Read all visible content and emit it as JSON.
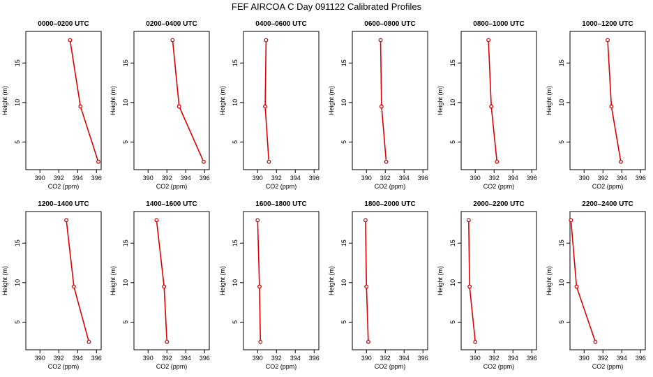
{
  "figure_title": "FEF AIRCOA C  Day 091122  Calibrated Profiles",
  "colors": {
    "series": "#dd0000",
    "axis": "#000000"
  },
  "chart_data": [
    {
      "type": "line",
      "title": "0000–0200 UTC",
      "xlabel": "CO2 (ppm)",
      "ylabel": "Height (m)",
      "xlim": [
        388.5,
        396.5
      ],
      "ylim": [
        1.5,
        19
      ],
      "xticks": [
        "390",
        "392",
        "394",
        "396"
      ],
      "yticks": [
        "5",
        "10",
        "15"
      ],
      "series": [
        {
          "name": "profile",
          "x": [
            393.2,
            394.3,
            396.2
          ],
          "y": [
            17.9,
            9.5,
            2.5
          ]
        }
      ]
    },
    {
      "type": "line",
      "title": "0200–0400 UTC",
      "xlabel": "CO2 (ppm)",
      "ylabel": "Height (m)",
      "xlim": [
        388.5,
        396.5
      ],
      "ylim": [
        1.5,
        19
      ],
      "xticks": [
        "390",
        "392",
        "394",
        "396"
      ],
      "yticks": [
        "5",
        "10",
        "15"
      ],
      "series": [
        {
          "name": "profile",
          "x": [
            392.6,
            393.3,
            395.9
          ],
          "y": [
            17.9,
            9.5,
            2.5
          ]
        }
      ]
    },
    {
      "type": "line",
      "title": "0400–0600 UTC",
      "xlabel": "CO2 (ppm)",
      "ylabel": "Height (m)",
      "xlim": [
        388.5,
        396.5
      ],
      "ylim": [
        1.5,
        19
      ],
      "xticks": [
        "390",
        "392",
        "394",
        "396"
      ],
      "yticks": [
        "5",
        "10",
        "15"
      ],
      "series": [
        {
          "name": "profile",
          "x": [
            390.9,
            390.8,
            391.2
          ],
          "y": [
            17.9,
            9.5,
            2.5
          ]
        }
      ]
    },
    {
      "type": "line",
      "title": "0600–0800 UTC",
      "xlabel": "CO2 (ppm)",
      "ylabel": "Height (m)",
      "xlim": [
        388.5,
        396.5
      ],
      "ylim": [
        1.5,
        19
      ],
      "xticks": [
        "390",
        "392",
        "394",
        "396"
      ],
      "yticks": [
        "5",
        "10",
        "15"
      ],
      "series": [
        {
          "name": "profile",
          "x": [
            391.5,
            391.6,
            392.1
          ],
          "y": [
            17.9,
            9.5,
            2.5
          ]
        }
      ]
    },
    {
      "type": "line",
      "title": "0800–1000 UTC",
      "xlabel": "CO2 (ppm)",
      "ylabel": "Height (m)",
      "xlim": [
        388.5,
        396.5
      ],
      "ylim": [
        1.5,
        19
      ],
      "xticks": [
        "390",
        "392",
        "394",
        "396"
      ],
      "yticks": [
        "5",
        "10",
        "15"
      ],
      "series": [
        {
          "name": "profile",
          "x": [
            391.4,
            391.7,
            392.3
          ],
          "y": [
            17.9,
            9.5,
            2.5
          ]
        }
      ]
    },
    {
      "type": "line",
      "title": "1000–1200 UTC",
      "xlabel": "CO2 (ppm)",
      "ylabel": "Height (m)",
      "xlim": [
        388.5,
        396.5
      ],
      "ylim": [
        1.5,
        19
      ],
      "xticks": [
        "390",
        "392",
        "394",
        "396"
      ],
      "yticks": [
        "5",
        "10",
        "15"
      ],
      "series": [
        {
          "name": "profile",
          "x": [
            392.5,
            392.9,
            393.9
          ],
          "y": [
            17.9,
            9.5,
            2.5
          ]
        }
      ]
    },
    {
      "type": "line",
      "title": "1200–1400 UTC",
      "xlabel": "CO2 (ppm)",
      "ylabel": "Height (m)",
      "xlim": [
        388.5,
        396.5
      ],
      "ylim": [
        1.5,
        19
      ],
      "xticks": [
        "390",
        "392",
        "394",
        "396"
      ],
      "yticks": [
        "5",
        "10",
        "15"
      ],
      "series": [
        {
          "name": "profile",
          "x": [
            392.8,
            393.6,
            395.2
          ],
          "y": [
            17.9,
            9.5,
            2.5
          ]
        }
      ]
    },
    {
      "type": "line",
      "title": "1400–1600 UTC",
      "xlabel": "CO2 (ppm)",
      "ylabel": "Height (m)",
      "xlim": [
        388.5,
        396.5
      ],
      "ylim": [
        1.5,
        19
      ],
      "xticks": [
        "390",
        "392",
        "394",
        "396"
      ],
      "yticks": [
        "5",
        "10",
        "15"
      ],
      "series": [
        {
          "name": "profile",
          "x": [
            390.9,
            391.7,
            392.0
          ],
          "y": [
            17.9,
            9.5,
            2.5
          ]
        }
      ]
    },
    {
      "type": "line",
      "title": "1600–1800 UTC",
      "xlabel": "CO2 (ppm)",
      "ylabel": "Height (m)",
      "xlim": [
        388.5,
        396.5
      ],
      "ylim": [
        1.5,
        19
      ],
      "xticks": [
        "390",
        "392",
        "394",
        "396"
      ],
      "yticks": [
        "5",
        "10",
        "15"
      ],
      "series": [
        {
          "name": "profile",
          "x": [
            390.0,
            390.2,
            390.3
          ],
          "y": [
            17.9,
            9.5,
            2.5
          ]
        }
      ]
    },
    {
      "type": "line",
      "title": "1800–2000 UTC",
      "xlabel": "CO2 (ppm)",
      "ylabel": "Height (m)",
      "xlim": [
        388.5,
        396.5
      ],
      "ylim": [
        1.5,
        19
      ],
      "xticks": [
        "390",
        "392",
        "394",
        "396"
      ],
      "yticks": [
        "5",
        "10",
        "15"
      ],
      "series": [
        {
          "name": "profile",
          "x": [
            389.9,
            390.0,
            390.2
          ],
          "y": [
            17.9,
            9.5,
            2.5
          ]
        }
      ]
    },
    {
      "type": "line",
      "title": "2000–2200 UTC",
      "xlabel": "CO2 (ppm)",
      "ylabel": "Height (m)",
      "xlim": [
        388.5,
        396.5
      ],
      "ylim": [
        1.5,
        19
      ],
      "xticks": [
        "390",
        "392",
        "394",
        "396"
      ],
      "yticks": [
        "5",
        "10",
        "15"
      ],
      "series": [
        {
          "name": "profile",
          "x": [
            389.3,
            389.4,
            390.0
          ],
          "y": [
            17.9,
            9.5,
            2.5
          ]
        }
      ]
    },
    {
      "type": "line",
      "title": "2200–2400 UTC",
      "xlabel": "CO2 (ppm)",
      "ylabel": "Height (m)",
      "xlim": [
        388.5,
        396.5
      ],
      "ylim": [
        1.5,
        19
      ],
      "xticks": [
        "390",
        "392",
        "394",
        "396"
      ],
      "yticks": [
        "5",
        "10",
        "15"
      ],
      "series": [
        {
          "name": "profile",
          "x": [
            388.6,
            389.2,
            391.2
          ],
          "y": [
            17.9,
            9.5,
            2.5
          ]
        }
      ]
    }
  ]
}
